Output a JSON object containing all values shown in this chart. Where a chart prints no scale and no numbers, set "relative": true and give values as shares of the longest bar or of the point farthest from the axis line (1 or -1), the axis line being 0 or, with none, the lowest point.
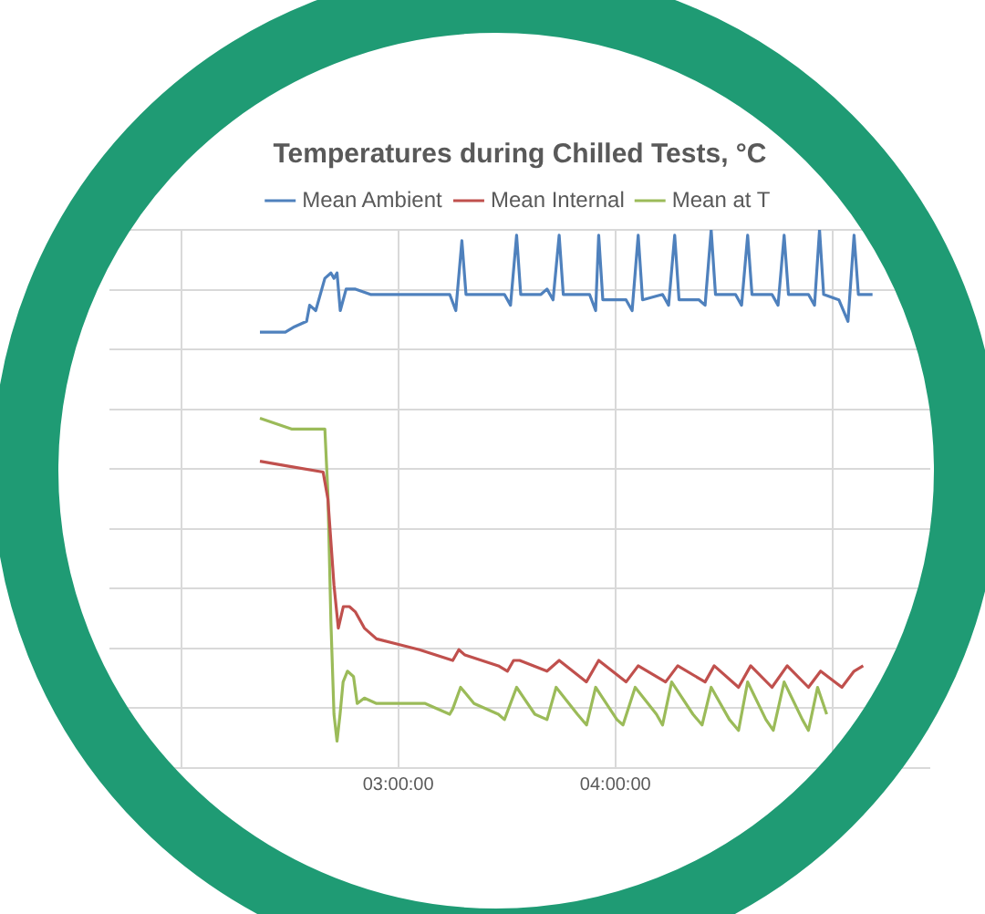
{
  "chart_data": {
    "type": "line",
    "title": "Temperatures during Chilled Tests, °C",
    "relative": true,
    "grid": true,
    "legend": "top",
    "marker": "none",
    "xlim": [
      1.67,
      5.45
    ],
    "xticks": [
      {
        "value": 2,
        "label": null
      },
      {
        "value": 3,
        "label": "03:00:00"
      },
      {
        "value": 4,
        "label": "04:00:00"
      },
      {
        "value": 5,
        "label": null
      }
    ],
    "series": [
      {
        "name": "Mean Ambient",
        "color": "#4f81bd",
        "x": [
          2.363,
          2.41,
          2.48,
          2.522,
          2.578,
          2.592,
          2.62,
          2.662,
          2.69,
          2.704,
          2.718,
          2.733,
          2.76,
          2.803,
          2.872,
          3.04,
          3.153,
          3.237,
          3.265,
          3.293,
          3.312,
          3.433,
          3.489,
          3.517,
          3.545,
          3.564,
          3.657,
          3.685,
          3.713,
          3.741,
          3.76,
          3.881,
          3.909,
          3.923,
          3.942,
          4.049,
          4.077,
          4.105,
          4.125,
          4.217,
          4.245,
          4.273,
          4.293,
          4.385,
          4.413,
          4.441,
          4.461,
          4.553,
          4.581,
          4.609,
          4.629,
          4.721,
          4.749,
          4.777,
          4.797,
          4.889,
          4.917,
          4.94,
          4.959,
          5.029,
          5.071,
          5.099,
          5.119,
          5.184
        ],
        "values": [
          0.81,
          0.81,
          0.81,
          0.82,
          0.83,
          0.86,
          0.85,
          0.91,
          0.92,
          0.91,
          0.92,
          0.85,
          0.89,
          0.89,
          0.88,
          0.88,
          0.88,
          0.88,
          0.85,
          0.98,
          0.88,
          0.88,
          0.88,
          0.86,
          0.99,
          0.88,
          0.88,
          0.89,
          0.87,
          0.99,
          0.88,
          0.88,
          0.85,
          0.99,
          0.87,
          0.87,
          0.85,
          0.99,
          0.87,
          0.88,
          0.86,
          0.99,
          0.87,
          0.87,
          0.86,
          1.0,
          0.88,
          0.88,
          0.86,
          0.99,
          0.88,
          0.88,
          0.86,
          0.99,
          0.88,
          0.88,
          0.86,
          1.0,
          0.88,
          0.87,
          0.83,
          0.99,
          0.88,
          0.88
        ]
      },
      {
        "name": "Mean Internal",
        "color": "#c0504d",
        "x": [
          2.363,
          2.508,
          2.654,
          2.676,
          2.704,
          2.724,
          2.747,
          2.775,
          2.803,
          2.844,
          2.9,
          2.998,
          3.097,
          3.251,
          3.279,
          3.307,
          3.461,
          3.503,
          3.531,
          3.559,
          3.685,
          3.741,
          3.866,
          3.923,
          4.049,
          4.105,
          4.231,
          4.287,
          4.413,
          4.455,
          4.567,
          4.623,
          4.721,
          4.791,
          4.889,
          4.945,
          5.043,
          5.099,
          5.141
        ],
        "values": [
          0.57,
          0.56,
          0.55,
          0.5,
          0.34,
          0.26,
          0.3,
          0.3,
          0.29,
          0.26,
          0.24,
          0.23,
          0.22,
          0.2,
          0.22,
          0.21,
          0.19,
          0.18,
          0.2,
          0.2,
          0.18,
          0.2,
          0.16,
          0.2,
          0.16,
          0.19,
          0.16,
          0.19,
          0.16,
          0.19,
          0.15,
          0.19,
          0.15,
          0.19,
          0.15,
          0.18,
          0.15,
          0.18,
          0.19
        ]
      },
      {
        "name": "Mean at T",
        "color": "#9bbb59",
        "x": [
          2.363,
          2.508,
          2.662,
          2.676,
          2.69,
          2.704,
          2.718,
          2.732,
          2.746,
          2.766,
          2.794,
          2.811,
          2.844,
          2.9,
          3.013,
          3.124,
          3.237,
          3.251,
          3.287,
          3.349,
          3.461,
          3.489,
          3.545,
          3.629,
          3.685,
          3.727,
          3.825,
          3.867,
          3.909,
          4.007,
          4.035,
          4.091,
          4.189,
          4.217,
          4.259,
          4.357,
          4.399,
          4.441,
          4.525,
          4.567,
          4.609,
          4.693,
          4.727,
          4.777,
          4.861,
          4.889,
          4.931,
          4.973
        ],
        "values": [
          0.65,
          0.63,
          0.63,
          0.51,
          0.27,
          0.1,
          0.05,
          0.1,
          0.16,
          0.18,
          0.17,
          0.12,
          0.13,
          0.12,
          0.12,
          0.12,
          0.1,
          0.11,
          0.15,
          0.12,
          0.1,
          0.09,
          0.15,
          0.1,
          0.09,
          0.15,
          0.1,
          0.08,
          0.15,
          0.09,
          0.08,
          0.15,
          0.1,
          0.08,
          0.16,
          0.1,
          0.08,
          0.15,
          0.09,
          0.07,
          0.16,
          0.09,
          0.07,
          0.16,
          0.09,
          0.07,
          0.15,
          0.1
        ]
      }
    ]
  }
}
